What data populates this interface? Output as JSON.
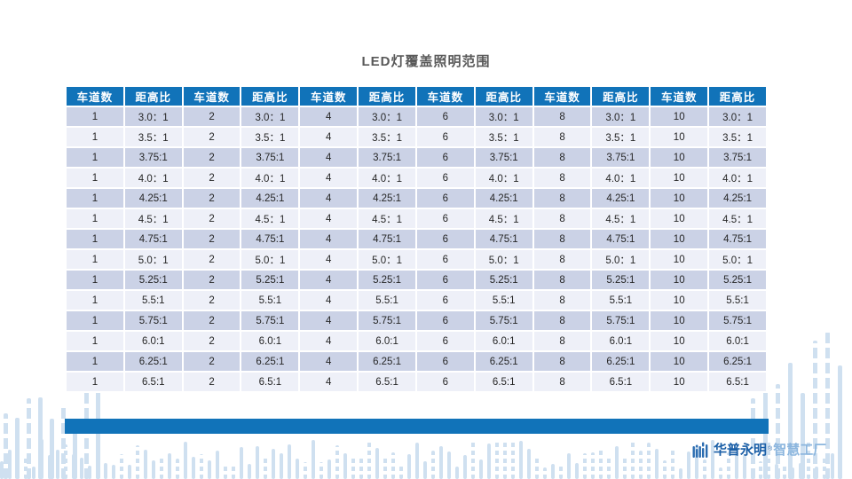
{
  "title": "LED灯覆盖照明范围",
  "table": {
    "lane_header": "车道数",
    "ratio_header": "距高比",
    "lane_counts": [
      1,
      2,
      4,
      6,
      8,
      10
    ],
    "ratios": [
      "3.0：1",
      "3.5：1",
      "3.75:1",
      "4.0：1",
      "4.25:1",
      "4.5：1",
      "4.75:1",
      "5.0：1",
      "5.25:1",
      "5.5:1",
      "5.75:1",
      "6.0:1",
      "6.25:1",
      "6.5:1"
    ]
  },
  "logo": {
    "brand": "华普永明",
    "reg_mark": "®",
    "suffix": "智慧工厂"
  },
  "colors": {
    "header_blue": "#1173b9",
    "row_dark": "#cbd2e6",
    "row_light": "#eef0f8",
    "decor_bar": "#cfe0f0",
    "title_gray": "#595959"
  }
}
